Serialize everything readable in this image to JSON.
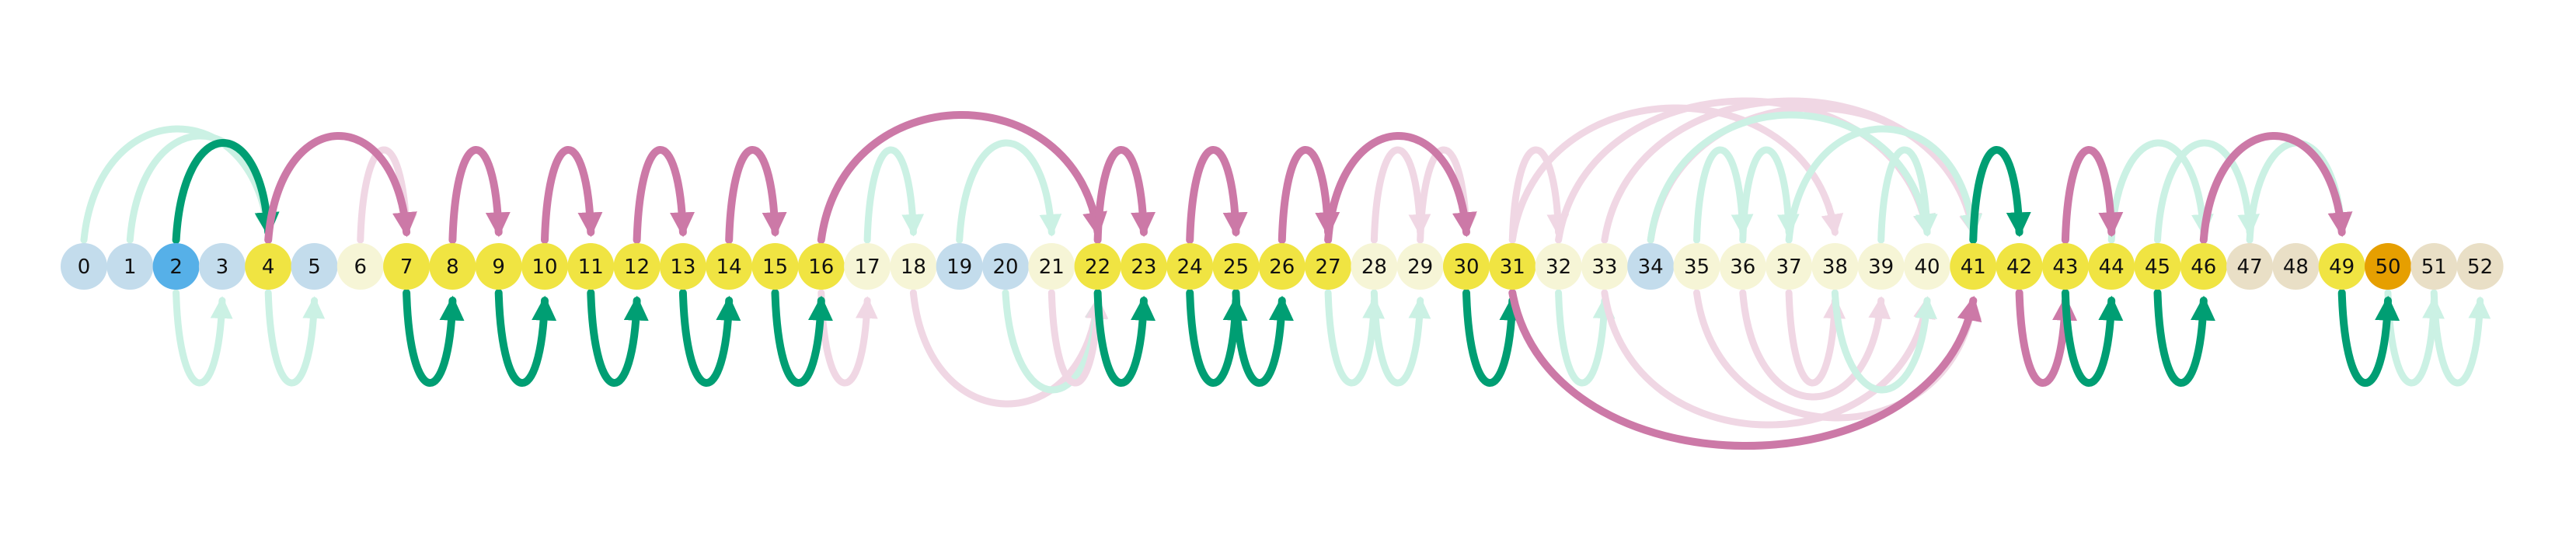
{
  "palette": {
    "node_light_blue": "#c3dcec",
    "node_blue": "#56b0e8",
    "node_yellow": "#f0e442",
    "node_pale_yellow": "#f6f5d6",
    "node_tan": "#e9dfc6",
    "node_orange": "#e69f00",
    "arc_green": "#009e73",
    "arc_pink": "#cc79a7",
    "arc_green_faded": "#cbf1e4",
    "arc_pink_faded": "#f0d7e4"
  },
  "nodes": [
    {
      "label": "0",
      "color": "light_blue"
    },
    {
      "label": "1",
      "color": "light_blue"
    },
    {
      "label": "2",
      "color": "blue"
    },
    {
      "label": "3",
      "color": "light_blue"
    },
    {
      "label": "4",
      "color": "yellow"
    },
    {
      "label": "5",
      "color": "light_blue"
    },
    {
      "label": "6",
      "color": "pale_yellow"
    },
    {
      "label": "7",
      "color": "yellow"
    },
    {
      "label": "8",
      "color": "yellow"
    },
    {
      "label": "9",
      "color": "yellow"
    },
    {
      "label": "10",
      "color": "yellow"
    },
    {
      "label": "11",
      "color": "yellow"
    },
    {
      "label": "12",
      "color": "yellow"
    },
    {
      "label": "13",
      "color": "yellow"
    },
    {
      "label": "14",
      "color": "yellow"
    },
    {
      "label": "15",
      "color": "yellow"
    },
    {
      "label": "16",
      "color": "yellow"
    },
    {
      "label": "17",
      "color": "pale_yellow"
    },
    {
      "label": "18",
      "color": "pale_yellow"
    },
    {
      "label": "19",
      "color": "light_blue"
    },
    {
      "label": "20",
      "color": "light_blue"
    },
    {
      "label": "21",
      "color": "pale_yellow"
    },
    {
      "label": "22",
      "color": "yellow"
    },
    {
      "label": "23",
      "color": "yellow"
    },
    {
      "label": "24",
      "color": "yellow"
    },
    {
      "label": "25",
      "color": "yellow"
    },
    {
      "label": "26",
      "color": "yellow"
    },
    {
      "label": "27",
      "color": "yellow"
    },
    {
      "label": "28",
      "color": "pale_yellow"
    },
    {
      "label": "29",
      "color": "pale_yellow"
    },
    {
      "label": "30",
      "color": "yellow"
    },
    {
      "label": "31",
      "color": "yellow"
    },
    {
      "label": "32",
      "color": "pale_yellow"
    },
    {
      "label": "33",
      "color": "pale_yellow"
    },
    {
      "label": "34",
      "color": "light_blue"
    },
    {
      "label": "35",
      "color": "pale_yellow"
    },
    {
      "label": "36",
      "color": "pale_yellow"
    },
    {
      "label": "37",
      "color": "pale_yellow"
    },
    {
      "label": "38",
      "color": "pale_yellow"
    },
    {
      "label": "39",
      "color": "pale_yellow"
    },
    {
      "label": "40",
      "color": "pale_yellow"
    },
    {
      "label": "41",
      "color": "yellow"
    },
    {
      "label": "42",
      "color": "yellow"
    },
    {
      "label": "43",
      "color": "yellow"
    },
    {
      "label": "44",
      "color": "yellow"
    },
    {
      "label": "45",
      "color": "yellow"
    },
    {
      "label": "46",
      "color": "yellow"
    },
    {
      "label": "47",
      "color": "tan"
    },
    {
      "label": "48",
      "color": "tan"
    },
    {
      "label": "49",
      "color": "yellow"
    },
    {
      "label": "50",
      "color": "orange"
    },
    {
      "label": "51",
      "color": "tan"
    },
    {
      "label": "52",
      "color": "tan"
    }
  ],
  "arcs": [
    {
      "from": 0,
      "to": 4,
      "side": "above",
      "color": "green",
      "faded": true
    },
    {
      "from": 1,
      "to": 4,
      "side": "above",
      "color": "green",
      "faded": true
    },
    {
      "from": 2,
      "to": 4,
      "side": "above",
      "color": "green",
      "faded": false
    },
    {
      "from": 4,
      "to": 7,
      "side": "above",
      "color": "pink",
      "faded": false
    },
    {
      "from": 6,
      "to": 7,
      "side": "above",
      "color": "pink",
      "faded": true
    },
    {
      "from": 8,
      "to": 9,
      "side": "above",
      "color": "pink",
      "faded": false
    },
    {
      "from": 10,
      "to": 11,
      "side": "above",
      "color": "pink",
      "faded": false
    },
    {
      "from": 12,
      "to": 13,
      "side": "above",
      "color": "pink",
      "faded": false
    },
    {
      "from": 14,
      "to": 15,
      "side": "above",
      "color": "pink",
      "faded": false
    },
    {
      "from": 16,
      "to": 22,
      "side": "above",
      "color": "pink",
      "faded": false
    },
    {
      "from": 17,
      "to": 18,
      "side": "above",
      "color": "green",
      "faded": true
    },
    {
      "from": 19,
      "to": 21,
      "side": "above",
      "color": "green",
      "faded": true
    },
    {
      "from": 22,
      "to": 23,
      "side": "above",
      "color": "pink",
      "faded": false
    },
    {
      "from": 24,
      "to": 25,
      "side": "above",
      "color": "pink",
      "faded": false
    },
    {
      "from": 26,
      "to": 27,
      "side": "above",
      "color": "pink",
      "faded": false
    },
    {
      "from": 27,
      "to": 30,
      "side": "above",
      "color": "pink",
      "faded": false
    },
    {
      "from": 28,
      "to": 29,
      "side": "above",
      "color": "pink",
      "faded": true
    },
    {
      "from": 29,
      "to": 30,
      "side": "above",
      "color": "pink",
      "faded": true
    },
    {
      "from": 31,
      "to": 32,
      "side": "above",
      "color": "pink",
      "faded": true
    },
    {
      "from": 32,
      "to": 40,
      "side": "above",
      "color": "pink",
      "faded": true
    },
    {
      "from": 33,
      "to": 41,
      "side": "above",
      "color": "pink",
      "faded": true
    },
    {
      "from": 31,
      "to": 38,
      "side": "above",
      "color": "pink",
      "faded": true
    },
    {
      "from": 34,
      "to": 41,
      "side": "above",
      "color": "pink",
      "faded": true
    },
    {
      "from": 35,
      "to": 36,
      "side": "above",
      "color": "green",
      "faded": true
    },
    {
      "from": 34,
      "to": 40,
      "side": "above",
      "color": "green",
      "faded": true
    },
    {
      "from": 36,
      "to": 37,
      "side": "above",
      "color": "green",
      "faded": true
    },
    {
      "from": 37,
      "to": 41,
      "side": "above",
      "color": "green",
      "faded": true
    },
    {
      "from": 39,
      "to": 40,
      "side": "above",
      "color": "green",
      "faded": true
    },
    {
      "from": 41,
      "to": 42,
      "side": "above",
      "color": "green",
      "faded": false
    },
    {
      "from": 43,
      "to": 44,
      "side": "above",
      "color": "pink",
      "faded": false
    },
    {
      "from": 44,
      "to": 46,
      "side": "above",
      "color": "green",
      "faded": true
    },
    {
      "from": 45,
      "to": 47,
      "side": "above",
      "color": "green",
      "faded": true
    },
    {
      "from": 46,
      "to": 49,
      "side": "above",
      "color": "pink",
      "faded": false
    },
    {
      "from": 47,
      "to": 49,
      "side": "above",
      "color": "green",
      "faded": true
    },
    {
      "from": 2,
      "to": 3,
      "side": "below",
      "color": "green",
      "faded": true
    },
    {
      "from": 4,
      "to": 5,
      "side": "below",
      "color": "green",
      "faded": true
    },
    {
      "from": 7,
      "to": 8,
      "side": "below",
      "color": "green",
      "faded": false
    },
    {
      "from": 9,
      "to": 10,
      "side": "below",
      "color": "green",
      "faded": false
    },
    {
      "from": 11,
      "to": 12,
      "side": "below",
      "color": "green",
      "faded": false
    },
    {
      "from": 13,
      "to": 14,
      "side": "below",
      "color": "green",
      "faded": false
    },
    {
      "from": 15,
      "to": 16,
      "side": "below",
      "color": "green",
      "faded": false
    },
    {
      "from": 16,
      "to": 17,
      "side": "below",
      "color": "pink",
      "faded": true
    },
    {
      "from": 18,
      "to": 22,
      "side": "below",
      "color": "pink",
      "faded": true
    },
    {
      "from": 20,
      "to": 22,
      "side": "below",
      "color": "green",
      "faded": true
    },
    {
      "from": 21,
      "to": 22,
      "side": "below",
      "color": "pink",
      "faded": true
    },
    {
      "from": 22,
      "to": 23,
      "side": "below",
      "color": "green",
      "faded": false
    },
    {
      "from": 24,
      "to": 25,
      "side": "below",
      "color": "green",
      "faded": false
    },
    {
      "from": 25,
      "to": 26,
      "side": "below",
      "color": "green",
      "faded": false
    },
    {
      "from": 27,
      "to": 28,
      "side": "below",
      "color": "green",
      "faded": true
    },
    {
      "from": 28,
      "to": 29,
      "side": "below",
      "color": "green",
      "faded": true
    },
    {
      "from": 30,
      "to": 31,
      "side": "below",
      "color": "green",
      "faded": false
    },
    {
      "from": 31,
      "to": 41,
      "side": "below",
      "color": "pink",
      "faded": false
    },
    {
      "from": 32,
      "to": 33,
      "side": "below",
      "color": "green",
      "faded": true
    },
    {
      "from": 33,
      "to": 40,
      "side": "below",
      "color": "pink",
      "faded": true
    },
    {
      "from": 35,
      "to": 41,
      "side": "below",
      "color": "pink",
      "faded": true
    },
    {
      "from": 36,
      "to": 39,
      "side": "below",
      "color": "pink",
      "faded": true
    },
    {
      "from": 37,
      "to": 38,
      "side": "below",
      "color": "pink",
      "faded": true
    },
    {
      "from": 38,
      "to": 40,
      "side": "below",
      "color": "green",
      "faded": true
    },
    {
      "from": 42,
      "to": 43,
      "side": "below",
      "color": "pink",
      "faded": false
    },
    {
      "from": 43,
      "to": 44,
      "side": "below",
      "color": "green",
      "faded": false
    },
    {
      "from": 45,
      "to": 46,
      "side": "below",
      "color": "green",
      "faded": false
    },
    {
      "from": 49,
      "to": 50,
      "side": "below",
      "color": "green",
      "faded": false
    },
    {
      "from": 50,
      "to": 51,
      "side": "below",
      "color": "green",
      "faded": true
    },
    {
      "from": 51,
      "to": 52,
      "side": "below",
      "color": "green",
      "faded": true
    }
  ]
}
